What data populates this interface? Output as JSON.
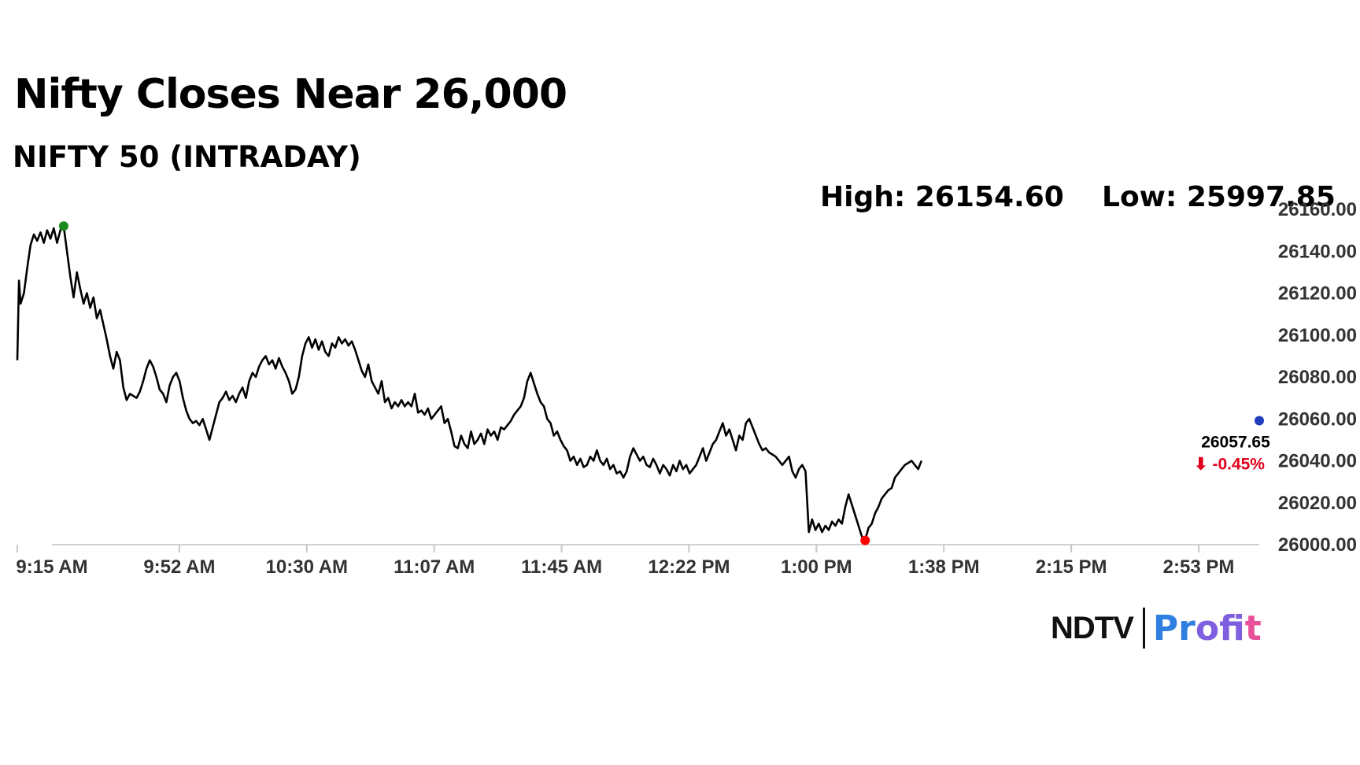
{
  "header": {
    "title": "Nifty Closes Near 26,000",
    "subtitle": "NIFTY 50 (INTRADAY)",
    "high_text": "High: 26154.60",
    "low_text": "Low: 25997.85"
  },
  "brand": {
    "ndtv": "NDTV",
    "profit": "Profit"
  },
  "chart_data": {
    "type": "line",
    "title": "Nifty Closes Near 26,000",
    "subtitle": "NIFTY 50 (INTRADAY)",
    "x_ticks": [
      "9:15 AM",
      "9:52 AM",
      "10:30 AM",
      "11:07 AM",
      "11:45 AM",
      "12:22 PM",
      "1:00 PM",
      "1:38 PM",
      "2:15 PM",
      "2:53 PM"
    ],
    "y_ticks": [
      "26000.00",
      "26020.00",
      "26040.00",
      "26060.00",
      "26080.00",
      "26100.00",
      "26120.00",
      "26140.00",
      "26160.00"
    ],
    "ylim": [
      26000,
      26160
    ],
    "x_range_minutes": [
      555,
      930
    ],
    "high": 26154.6,
    "low": 25997.85,
    "last_value": "26057.65",
    "change_text": "-0.45%",
    "change_arrow": "⬇",
    "grid": false,
    "line_color": "#000000",
    "high_marker_color": "#1a8a1a",
    "low_marker_color": "#ff0000",
    "last_marker_color": "#1f3fbf",
    "change_color": "#e0001a",
    "series": [
      {
        "values": [
          [
            555,
            26088
          ],
          [
            555.5,
            26126
          ],
          [
            556,
            26115
          ],
          [
            557,
            26120
          ],
          [
            558,
            26132
          ],
          [
            559,
            26143
          ],
          [
            560,
            26148
          ],
          [
            561,
            26145
          ],
          [
            562,
            26149
          ],
          [
            563,
            26144
          ],
          [
            564,
            26150
          ],
          [
            565,
            26146
          ],
          [
            566,
            26151
          ],
          [
            567,
            26144
          ],
          [
            568,
            26150
          ],
          [
            569,
            26152
          ],
          [
            570,
            26140
          ],
          [
            571,
            26128
          ],
          [
            572,
            26118
          ],
          [
            573,
            26130
          ],
          [
            574,
            26122
          ],
          [
            575,
            26115
          ],
          [
            576,
            26120
          ],
          [
            577,
            26113
          ],
          [
            578,
            26118
          ],
          [
            579,
            26108
          ],
          [
            580,
            26112
          ],
          [
            581,
            26105
          ],
          [
            582,
            26098
          ],
          [
            583,
            26090
          ],
          [
            584,
            26084
          ],
          [
            585,
            26092
          ],
          [
            586,
            26088
          ],
          [
            587,
            26075
          ],
          [
            588,
            26069
          ],
          [
            589,
            26072
          ],
          [
            590,
            26071
          ],
          [
            591,
            26070
          ],
          [
            592,
            26073
          ],
          [
            593,
            26078
          ],
          [
            594,
            26084
          ],
          [
            595,
            26088
          ],
          [
            596,
            26085
          ],
          [
            597,
            26080
          ],
          [
            598,
            26074
          ],
          [
            599,
            26072
          ],
          [
            600,
            26068
          ],
          [
            601,
            26076
          ],
          [
            602,
            26080
          ],
          [
            603,
            26082
          ],
          [
            604,
            26078
          ],
          [
            605,
            26070
          ],
          [
            606,
            26064
          ],
          [
            607,
            26060
          ],
          [
            608,
            26058
          ],
          [
            609,
            26059
          ],
          [
            610,
            26057
          ],
          [
            611,
            26060
          ],
          [
            612,
            26055
          ],
          [
            613,
            26050
          ],
          [
            614,
            26056
          ],
          [
            615,
            26062
          ],
          [
            616,
            26068
          ],
          [
            617,
            26070
          ],
          [
            618,
            26073
          ],
          [
            619,
            26069
          ],
          [
            620,
            26071
          ],
          [
            621,
            26068
          ],
          [
            622,
            26072
          ],
          [
            623,
            26075
          ],
          [
            624,
            26070
          ],
          [
            625,
            26078
          ],
          [
            626,
            26082
          ],
          [
            627,
            26080
          ],
          [
            628,
            26085
          ],
          [
            629,
            26088
          ],
          [
            630,
            26090
          ],
          [
            631,
            26086
          ],
          [
            632,
            26088
          ],
          [
            633,
            26084
          ],
          [
            634,
            26089
          ],
          [
            635,
            26085
          ],
          [
            636,
            26082
          ],
          [
            637,
            26078
          ],
          [
            638,
            26072
          ],
          [
            639,
            26074
          ],
          [
            640,
            26080
          ],
          [
            641,
            26090
          ],
          [
            642,
            26096
          ],
          [
            643,
            26099
          ],
          [
            644,
            26094
          ],
          [
            645,
            26098
          ],
          [
            646,
            26093
          ],
          [
            647,
            26097
          ],
          [
            648,
            26092
          ],
          [
            649,
            26090
          ],
          [
            650,
            26096
          ],
          [
            651,
            26094
          ],
          [
            652,
            26099
          ],
          [
            653,
            26096
          ],
          [
            654,
            26098
          ],
          [
            655,
            26095
          ],
          [
            656,
            26097
          ],
          [
            657,
            26093
          ],
          [
            658,
            26088
          ],
          [
            659,
            26083
          ],
          [
            660,
            26080
          ],
          [
            661,
            26086
          ],
          [
            662,
            26078
          ],
          [
            663,
            26075
          ],
          [
            664,
            26072
          ],
          [
            665,
            26078
          ],
          [
            666,
            26068
          ],
          [
            667,
            26070
          ],
          [
            668,
            26065
          ],
          [
            669,
            26068
          ],
          [
            670,
            26066
          ],
          [
            671,
            26069
          ],
          [
            672,
            26066
          ],
          [
            673,
            26068
          ],
          [
            674,
            26066
          ],
          [
            675,
            26072
          ],
          [
            676,
            26063
          ],
          [
            677,
            26064
          ],
          [
            678,
            26062
          ],
          [
            679,
            26065
          ],
          [
            680,
            26060
          ],
          [
            681,
            26062
          ],
          [
            682,
            26064
          ],
          [
            683,
            26066
          ],
          [
            684,
            26058
          ],
          [
            685,
            26060
          ],
          [
            686,
            26054
          ],
          [
            687,
            26047
          ],
          [
            688,
            26046
          ],
          [
            689,
            26052
          ],
          [
            690,
            26048
          ],
          [
            691,
            26046
          ],
          [
            692,
            26054
          ],
          [
            693,
            26048
          ],
          [
            694,
            26050
          ],
          [
            695,
            26053
          ],
          [
            696,
            26048
          ],
          [
            697,
            26055
          ],
          [
            698,
            26052
          ],
          [
            699,
            26054
          ],
          [
            700,
            26050
          ],
          [
            701,
            26056
          ],
          [
            702,
            26055
          ],
          [
            703,
            26057
          ],
          [
            704,
            26059
          ],
          [
            705,
            26062
          ],
          [
            706,
            26064
          ],
          [
            707,
            26066
          ],
          [
            708,
            26070
          ],
          [
            709,
            26078
          ],
          [
            710,
            26082
          ],
          [
            711,
            26077
          ],
          [
            712,
            26072
          ],
          [
            713,
            26068
          ],
          [
            714,
            26066
          ],
          [
            715,
            26060
          ],
          [
            716,
            26058
          ],
          [
            717,
            26052
          ],
          [
            718,
            26054
          ],
          [
            719,
            26050
          ],
          [
            720,
            26047
          ],
          [
            721,
            26045
          ],
          [
            722,
            26040
          ],
          [
            723,
            26042
          ],
          [
            724,
            26038
          ],
          [
            725,
            26041
          ],
          [
            726,
            26037
          ],
          [
            727,
            26038
          ],
          [
            728,
            26042
          ],
          [
            729,
            26040
          ],
          [
            730,
            26045
          ],
          [
            731,
            26040
          ],
          [
            732,
            26038
          ],
          [
            733,
            26041
          ],
          [
            734,
            26036
          ],
          [
            735,
            26038
          ],
          [
            736,
            26034
          ],
          [
            737,
            26035
          ],
          [
            738,
            26032
          ],
          [
            739,
            26035
          ],
          [
            740,
            26042
          ],
          [
            741,
            26046
          ],
          [
            742,
            26043
          ],
          [
            743,
            26040
          ],
          [
            744,
            26042
          ],
          [
            745,
            26038
          ],
          [
            746,
            26037
          ],
          [
            747,
            26041
          ],
          [
            748,
            26038
          ],
          [
            749,
            26034
          ],
          [
            750,
            26038
          ],
          [
            751,
            26036
          ],
          [
            752,
            26033
          ],
          [
            753,
            26038
          ],
          [
            754,
            26035
          ],
          [
            755,
            26040
          ],
          [
            756,
            26036
          ],
          [
            757,
            26038
          ],
          [
            758,
            26034
          ],
          [
            759,
            26036
          ],
          [
            760,
            26038
          ],
          [
            761,
            26042
          ],
          [
            762,
            26046
          ],
          [
            763,
            26040
          ],
          [
            764,
            26044
          ],
          [
            765,
            26048
          ],
          [
            766,
            26050
          ],
          [
            767,
            26054
          ],
          [
            768,
            26058
          ],
          [
            769,
            26052
          ],
          [
            770,
            26055
          ],
          [
            771,
            26050
          ],
          [
            772,
            26045
          ],
          [
            773,
            26052
          ],
          [
            774,
            26050
          ],
          [
            775,
            26058
          ],
          [
            776,
            26060
          ],
          [
            777,
            26056
          ],
          [
            778,
            26052
          ],
          [
            779,
            26048
          ],
          [
            780,
            26045
          ],
          [
            781,
            26046
          ],
          [
            782,
            26044
          ],
          [
            783,
            26043
          ],
          [
            784,
            26042
          ],
          [
            785,
            26040
          ],
          [
            786,
            26038
          ],
          [
            787,
            26040
          ],
          [
            788,
            26042
          ],
          [
            789,
            26035
          ],
          [
            790,
            26032
          ],
          [
            791,
            26036
          ],
          [
            792,
            26038
          ],
          [
            793,
            26035
          ],
          [
            794,
            26006
          ],
          [
            795,
            26012
          ],
          [
            796,
            26007
          ],
          [
            797,
            26010
          ],
          [
            798,
            26006
          ],
          [
            799,
            26009
          ],
          [
            800,
            26007
          ],
          [
            801,
            26011
          ],
          [
            802,
            26009
          ],
          [
            803,
            26012
          ],
          [
            804,
            26010
          ],
          [
            805,
            26018
          ],
          [
            806,
            26024
          ],
          [
            807,
            26019
          ],
          [
            808,
            26014
          ],
          [
            809,
            26009
          ],
          [
            810,
            26004
          ],
          [
            811,
            26002
          ],
          [
            812,
            26008
          ],
          [
            813,
            26010
          ],
          [
            814,
            26015
          ],
          [
            815,
            26018
          ],
          [
            816,
            26022
          ],
          [
            817,
            26024
          ],
          [
            818,
            26026
          ],
          [
            819,
            26027
          ],
          [
            820,
            26032
          ],
          [
            821,
            26034
          ],
          [
            822,
            26036
          ],
          [
            823,
            26038
          ],
          [
            824,
            26039
          ],
          [
            825,
            26040
          ],
          [
            826,
            26038
          ],
          [
            827,
            26036
          ],
          [
            828,
            26040
          ]
        ]
      }
    ]
  }
}
